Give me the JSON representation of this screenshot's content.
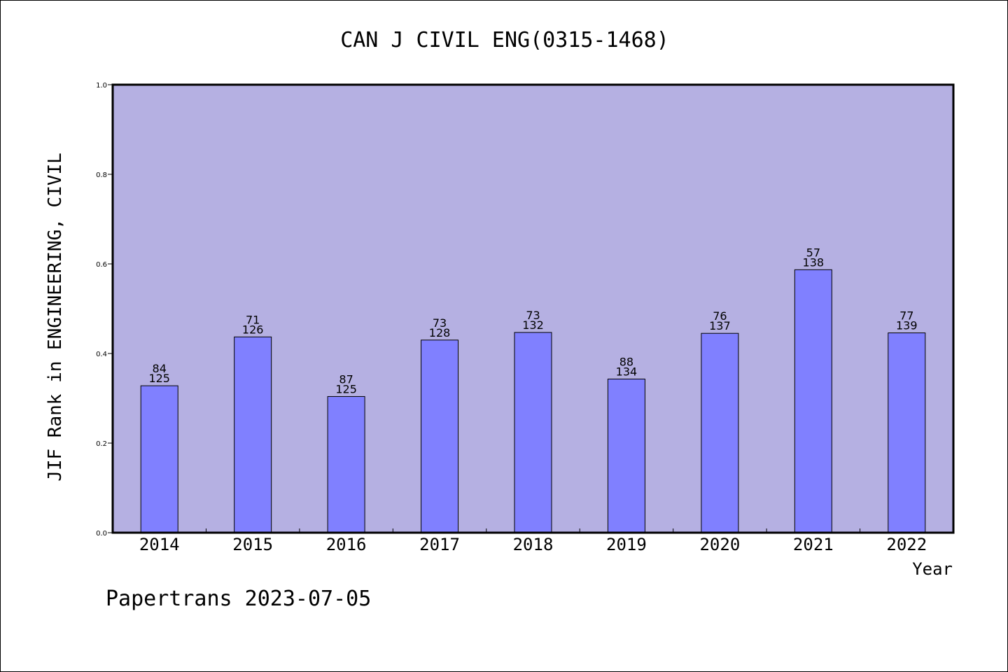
{
  "footer": "Papertrans 2023-07-05",
  "colors": {
    "plot_background": "#b5b0e2",
    "bar_fill": "#8080ff",
    "bar_stroke": "#000000"
  },
  "chart_data": {
    "type": "bar",
    "title": "CAN J CIVIL ENG(0315-1468)",
    "xlabel": "Year",
    "ylabel": "JIF Rank in ENGINEERING, CIVIL",
    "ylim": [
      0,
      1.0
    ],
    "yticks": [
      "0.0",
      "0.2",
      "0.4",
      "0.6",
      "0.8",
      "1.0"
    ],
    "grid": false,
    "categories": [
      "2014",
      "2015",
      "2016",
      "2017",
      "2018",
      "2019",
      "2020",
      "2021",
      "2022"
    ],
    "values": [
      0.328,
      0.437,
      0.304,
      0.43,
      0.447,
      0.343,
      0.445,
      0.587,
      0.446
    ],
    "rank": [
      "84",
      "71",
      "87",
      "73",
      "73",
      "88",
      "76",
      "57",
      "77"
    ],
    "total": [
      "125",
      "126",
      "125",
      "128",
      "132",
      "134",
      "137",
      "138",
      "139"
    ]
  }
}
